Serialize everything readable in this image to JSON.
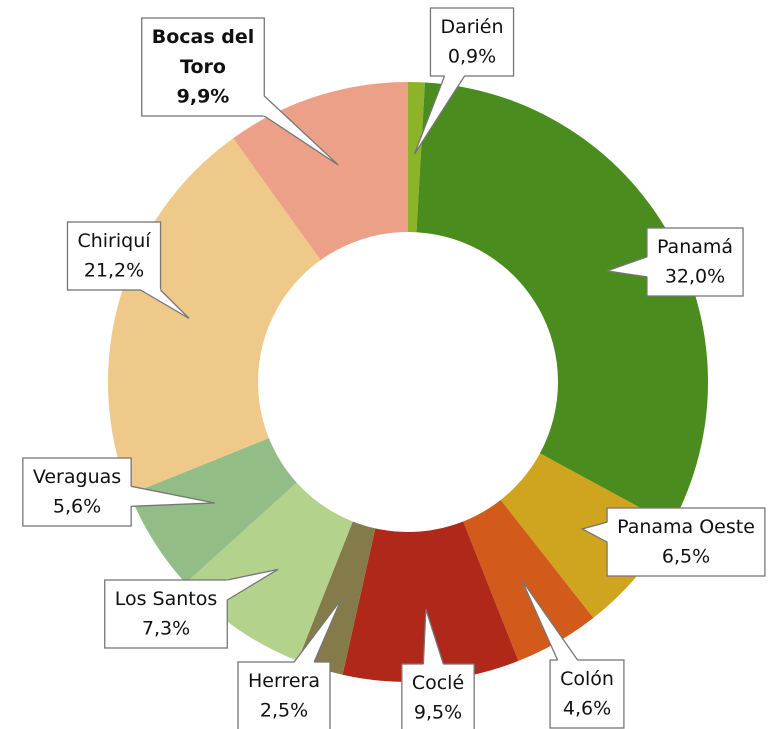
{
  "chart_data": {
    "type": "donut",
    "categories": [
      "Darién",
      "Panamá",
      "Panama Oeste",
      "Colón",
      "Coclé",
      "Herrera",
      "Los Santos",
      "Veraguas",
      "Chiriquí",
      "Bocas del Toro"
    ],
    "values": [
      0.9,
      32.0,
      6.5,
      4.6,
      9.5,
      2.5,
      7.3,
      5.6,
      21.2,
      9.9
    ],
    "value_labels": [
      "0,9%",
      "32,0%",
      "6,5%",
      "4,6%",
      "9,5%",
      "2,5%",
      "7,3%",
      "5,6%",
      "21,2%",
      "9,9%"
    ],
    "colors": [
      "#8db32a",
      "#4a8c1e",
      "#cfa41e",
      "#d25a1a",
      "#b0281a",
      "#857a4a",
      "#b3d38c",
      "#93bd87",
      "#eec98a",
      "#eda088"
    ],
    "bold_labels": [
      9
    ]
  }
}
